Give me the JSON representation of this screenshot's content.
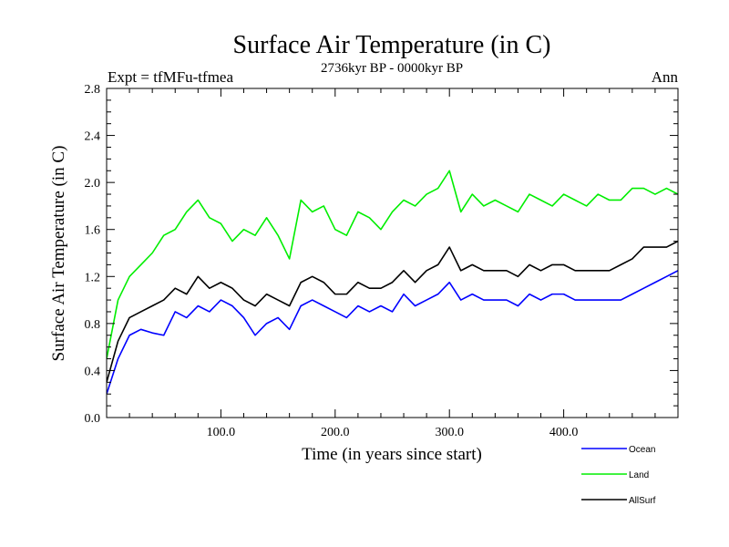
{
  "chart_data": {
    "type": "line",
    "title": "Surface Air Temperature (in C)",
    "subtitle": "2736kyr BP - 0000kyr BP",
    "expt_label": "Expt = tfMFu-tfmea",
    "season_label": "Ann",
    "xlabel": "Time (in years since start)",
    "ylabel": "Surface Air Temperature (in C)",
    "xlim": [
      0,
      500
    ],
    "ylim": [
      0.0,
      2.8
    ],
    "x_ticks": [
      100,
      200,
      300,
      400
    ],
    "x_tick_labels": [
      "100.0",
      "200.0",
      "300.0",
      "400.0"
    ],
    "y_ticks": [
      0.0,
      0.4,
      0.8,
      1.2,
      1.6,
      2.0,
      2.4,
      2.8
    ],
    "y_tick_labels": [
      "0.0",
      "0.4",
      "0.8",
      "1.2",
      "1.6",
      "2.0",
      "2.4",
      "2.8"
    ],
    "legend_position": "bottom-right, below plot",
    "series": [
      {
        "name": "Ocean",
        "color": "#0000ff",
        "x": [
          0,
          10,
          20,
          30,
          40,
          50,
          60,
          70,
          80,
          90,
          100,
          110,
          120,
          130,
          140,
          150,
          160,
          170,
          180,
          190,
          200,
          210,
          220,
          230,
          240,
          250,
          260,
          270,
          280,
          290,
          300,
          310,
          320,
          330,
          340,
          350,
          360,
          370,
          380,
          390,
          400,
          410,
          420,
          430,
          440,
          450,
          460,
          470,
          480,
          490,
          500
        ],
        "values": [
          0.2,
          0.5,
          0.7,
          0.75,
          0.72,
          0.7,
          0.9,
          0.85,
          0.95,
          0.9,
          1.0,
          0.95,
          0.85,
          0.7,
          0.8,
          0.85,
          0.75,
          0.95,
          1.0,
          0.95,
          0.9,
          0.85,
          0.95,
          0.9,
          0.95,
          0.9,
          1.05,
          0.95,
          1.0,
          1.05,
          1.15,
          1.0,
          1.05,
          1.0,
          1.0,
          1.0,
          0.95,
          1.05,
          1.0,
          1.05,
          1.05,
          1.0,
          1.0,
          1.0,
          1.0,
          1.0,
          1.05,
          1.1,
          1.15,
          1.2,
          1.25
        ]
      },
      {
        "name": "Land",
        "color": "#00ee00",
        "x": [
          0,
          10,
          20,
          30,
          40,
          50,
          60,
          70,
          80,
          90,
          100,
          110,
          120,
          130,
          140,
          150,
          160,
          170,
          180,
          190,
          200,
          210,
          220,
          230,
          240,
          250,
          260,
          270,
          280,
          290,
          300,
          310,
          320,
          330,
          340,
          350,
          360,
          370,
          380,
          390,
          400,
          410,
          420,
          430,
          440,
          450,
          460,
          470,
          480,
          490,
          500
        ],
        "values": [
          0.5,
          1.0,
          1.2,
          1.3,
          1.4,
          1.55,
          1.6,
          1.75,
          1.85,
          1.7,
          1.65,
          1.5,
          1.6,
          1.55,
          1.7,
          1.55,
          1.35,
          1.85,
          1.75,
          1.8,
          1.6,
          1.55,
          1.75,
          1.7,
          1.6,
          1.75,
          1.85,
          1.8,
          1.9,
          1.95,
          2.1,
          1.75,
          1.9,
          1.8,
          1.85,
          1.8,
          1.75,
          1.9,
          1.85,
          1.8,
          1.9,
          1.85,
          1.8,
          1.9,
          1.85,
          1.85,
          1.95,
          1.95,
          1.9,
          1.95,
          1.9
        ]
      },
      {
        "name": "AllSurf",
        "color": "#000000",
        "x": [
          0,
          10,
          20,
          30,
          40,
          50,
          60,
          70,
          80,
          90,
          100,
          110,
          120,
          130,
          140,
          150,
          160,
          170,
          180,
          190,
          200,
          210,
          220,
          230,
          240,
          250,
          260,
          270,
          280,
          290,
          300,
          310,
          320,
          330,
          340,
          350,
          360,
          370,
          380,
          390,
          400,
          410,
          420,
          430,
          440,
          450,
          460,
          470,
          480,
          490,
          500
        ],
        "values": [
          0.3,
          0.65,
          0.85,
          0.9,
          0.95,
          1.0,
          1.1,
          1.05,
          1.2,
          1.1,
          1.15,
          1.1,
          1.0,
          0.95,
          1.05,
          1.0,
          0.95,
          1.15,
          1.2,
          1.15,
          1.05,
          1.05,
          1.15,
          1.1,
          1.1,
          1.15,
          1.25,
          1.15,
          1.25,
          1.3,
          1.45,
          1.25,
          1.3,
          1.25,
          1.25,
          1.25,
          1.2,
          1.3,
          1.25,
          1.3,
          1.3,
          1.25,
          1.25,
          1.25,
          1.25,
          1.3,
          1.35,
          1.45,
          1.45,
          1.45,
          1.5
        ]
      }
    ]
  }
}
